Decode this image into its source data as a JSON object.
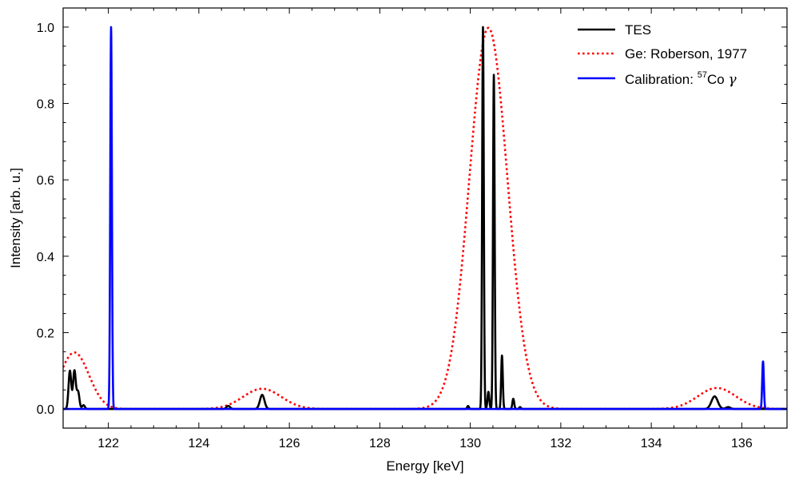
{
  "chart_data": {
    "type": "line",
    "xlabel": "Energy [keV]",
    "ylabel": "Intensity [arb. u.]",
    "xlim": [
      121.0,
      137.0
    ],
    "ylim": [
      -0.05,
      1.05
    ],
    "xticks": [
      122,
      124,
      126,
      128,
      130,
      132,
      134,
      136
    ],
    "yticks": [
      0.0,
      0.2,
      0.4,
      0.6,
      0.8,
      1.0
    ],
    "ytick_labels": [
      "0.0",
      "0.2",
      "0.4",
      "0.6",
      "0.8",
      "1.0"
    ],
    "legend_position": "top-right",
    "series": [
      {
        "name": "TES",
        "color": "#000000",
        "style": "solid",
        "peaks": [
          {
            "center": 121.15,
            "amp": 0.1,
            "sigma": 0.03
          },
          {
            "center": 121.25,
            "amp": 0.1,
            "sigma": 0.03
          },
          {
            "center": 121.33,
            "amp": 0.045,
            "sigma": 0.03
          },
          {
            "center": 121.45,
            "amp": 0.01,
            "sigma": 0.03
          },
          {
            "center": 124.65,
            "amp": 0.008,
            "sigma": 0.04
          },
          {
            "center": 125.4,
            "amp": 0.037,
            "sigma": 0.05
          },
          {
            "center": 129.95,
            "amp": 0.008,
            "sigma": 0.02
          },
          {
            "center": 130.28,
            "amp": 1.0,
            "sigma": 0.018
          },
          {
            "center": 130.4,
            "amp": 0.045,
            "sigma": 0.02
          },
          {
            "center": 130.52,
            "amp": 0.875,
            "sigma": 0.018
          },
          {
            "center": 130.7,
            "amp": 0.14,
            "sigma": 0.018
          },
          {
            "center": 130.95,
            "amp": 0.027,
            "sigma": 0.02
          },
          {
            "center": 131.1,
            "amp": 0.005,
            "sigma": 0.02
          },
          {
            "center": 135.4,
            "amp": 0.033,
            "sigma": 0.07
          },
          {
            "center": 135.7,
            "amp": 0.005,
            "sigma": 0.05
          }
        ]
      },
      {
        "name": "Ge: Roberson, 1977",
        "color": "#ff0000",
        "style": "dotted",
        "peaks": [
          {
            "center": 121.25,
            "amp": 0.148,
            "sigma": 0.32
          },
          {
            "center": 125.4,
            "amp": 0.053,
            "sigma": 0.42
          },
          {
            "center": 130.4,
            "amp": 0.998,
            "sigma": 0.42
          },
          {
            "center": 135.45,
            "amp": 0.055,
            "sigma": 0.42
          }
        ]
      },
      {
        "name": "Calibration: ⁵⁷Co γ",
        "legend_main": "Calibration: ",
        "legend_sup": "57",
        "legend_tail": "Co ",
        "legend_greek": "γ",
        "color": "#0000ff",
        "style": "solid",
        "peaks": [
          {
            "center": 122.06,
            "amp": 1.0,
            "sigma": 0.018
          },
          {
            "center": 136.47,
            "amp": 0.125,
            "sigma": 0.018
          }
        ]
      }
    ]
  }
}
